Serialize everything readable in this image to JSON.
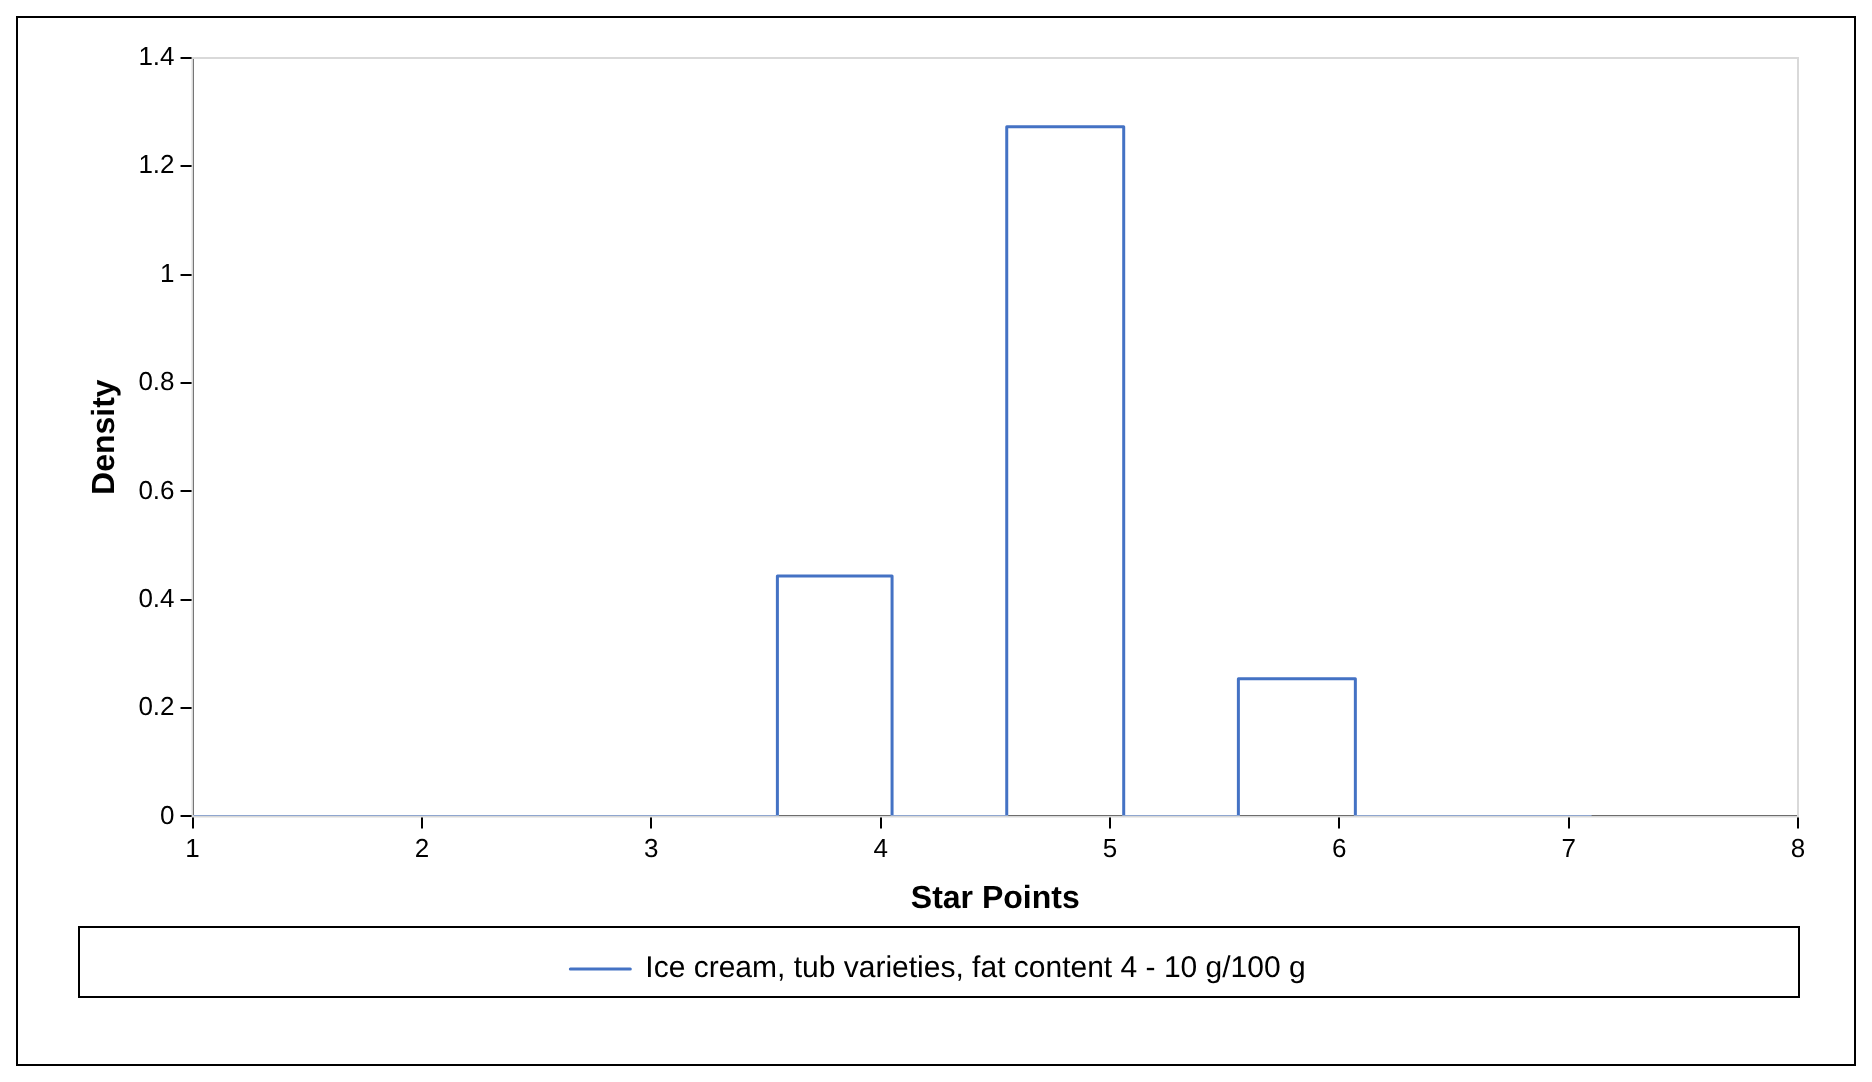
{
  "chart_data": {
    "type": "line",
    "xlabel": "Star Points",
    "ylabel": "Density",
    "series": [
      {
        "name": "Ice cream, tub varieties, fat content 4 - 10 g/100 g",
        "color": "#4472c4",
        "x": [
          1,
          3.55,
          3.55,
          4.05,
          4.05,
          4.55,
          4.55,
          5.06,
          5.06,
          5.56,
          5.56,
          6.07,
          6.07,
          7.1
        ],
        "values": [
          0,
          0,
          0.444,
          0.444,
          0,
          0,
          1.273,
          1.273,
          0,
          0,
          0.254,
          0.254,
          0,
          0
        ]
      }
    ],
    "xlim": [
      1,
      8
    ],
    "xticks": [
      1,
      2,
      3,
      4,
      5,
      6,
      7,
      8
    ],
    "ylim": [
      0,
      1.4
    ],
    "yticks": [
      0,
      0.2,
      0.4,
      0.6,
      0.8,
      1,
      1.2,
      1.4
    ],
    "grid": false,
    "legend": "bottom",
    "marker": "none",
    "line_style": "solid"
  }
}
